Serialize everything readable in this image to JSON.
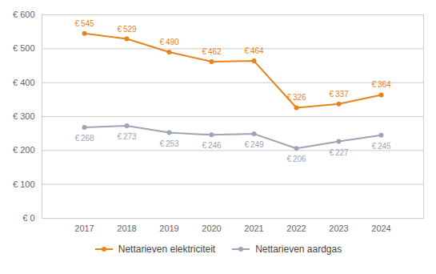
{
  "chart_data": {
    "type": "line",
    "x": [
      2017,
      2018,
      2019,
      2020,
      2021,
      2022,
      2023,
      2024
    ],
    "series": [
      {
        "name": "Nettarieven elektriciteit",
        "color": "#E8821A",
        "values": [
          545,
          529,
          490,
          462,
          464,
          326,
          337,
          364
        ],
        "value_labels": [
          "€ 545",
          "€ 529",
          "€ 490",
          "€ 462",
          "€ 464",
          "€ 326",
          "€ 337",
          "€ 364"
        ]
      },
      {
        "name": "Nettarieven aardgas",
        "color": "#9BA5B5",
        "values": [
          268,
          273,
          253,
          246,
          249,
          206,
          227,
          245
        ],
        "value_labels": [
          "€ 268",
          "€ 273",
          "€ 253",
          "€ 246",
          "€ 249",
          "€ 206",
          "€ 227",
          "€ 245"
        ]
      }
    ],
    "xlim": [
      2016,
      2025
    ],
    "xticks": [
      2017,
      2018,
      2019,
      2020,
      2021,
      2022,
      2023,
      2024
    ],
    "ylim": [
      0,
      600
    ],
    "yticks": [
      {
        "value": 0,
        "label": "€ 0"
      },
      {
        "value": 100,
        "label": "€ 100"
      },
      {
        "value": 200,
        "label": "€ 200"
      },
      {
        "value": 300,
        "label": "€ 300"
      },
      {
        "value": 400,
        "label": "€ 400"
      },
      {
        "value": 500,
        "label": "€ 500"
      },
      {
        "value": 600,
        "label": "€ 600"
      }
    ],
    "grid": true,
    "legend": "bottom",
    "marker": "circle",
    "data_labels": true
  }
}
